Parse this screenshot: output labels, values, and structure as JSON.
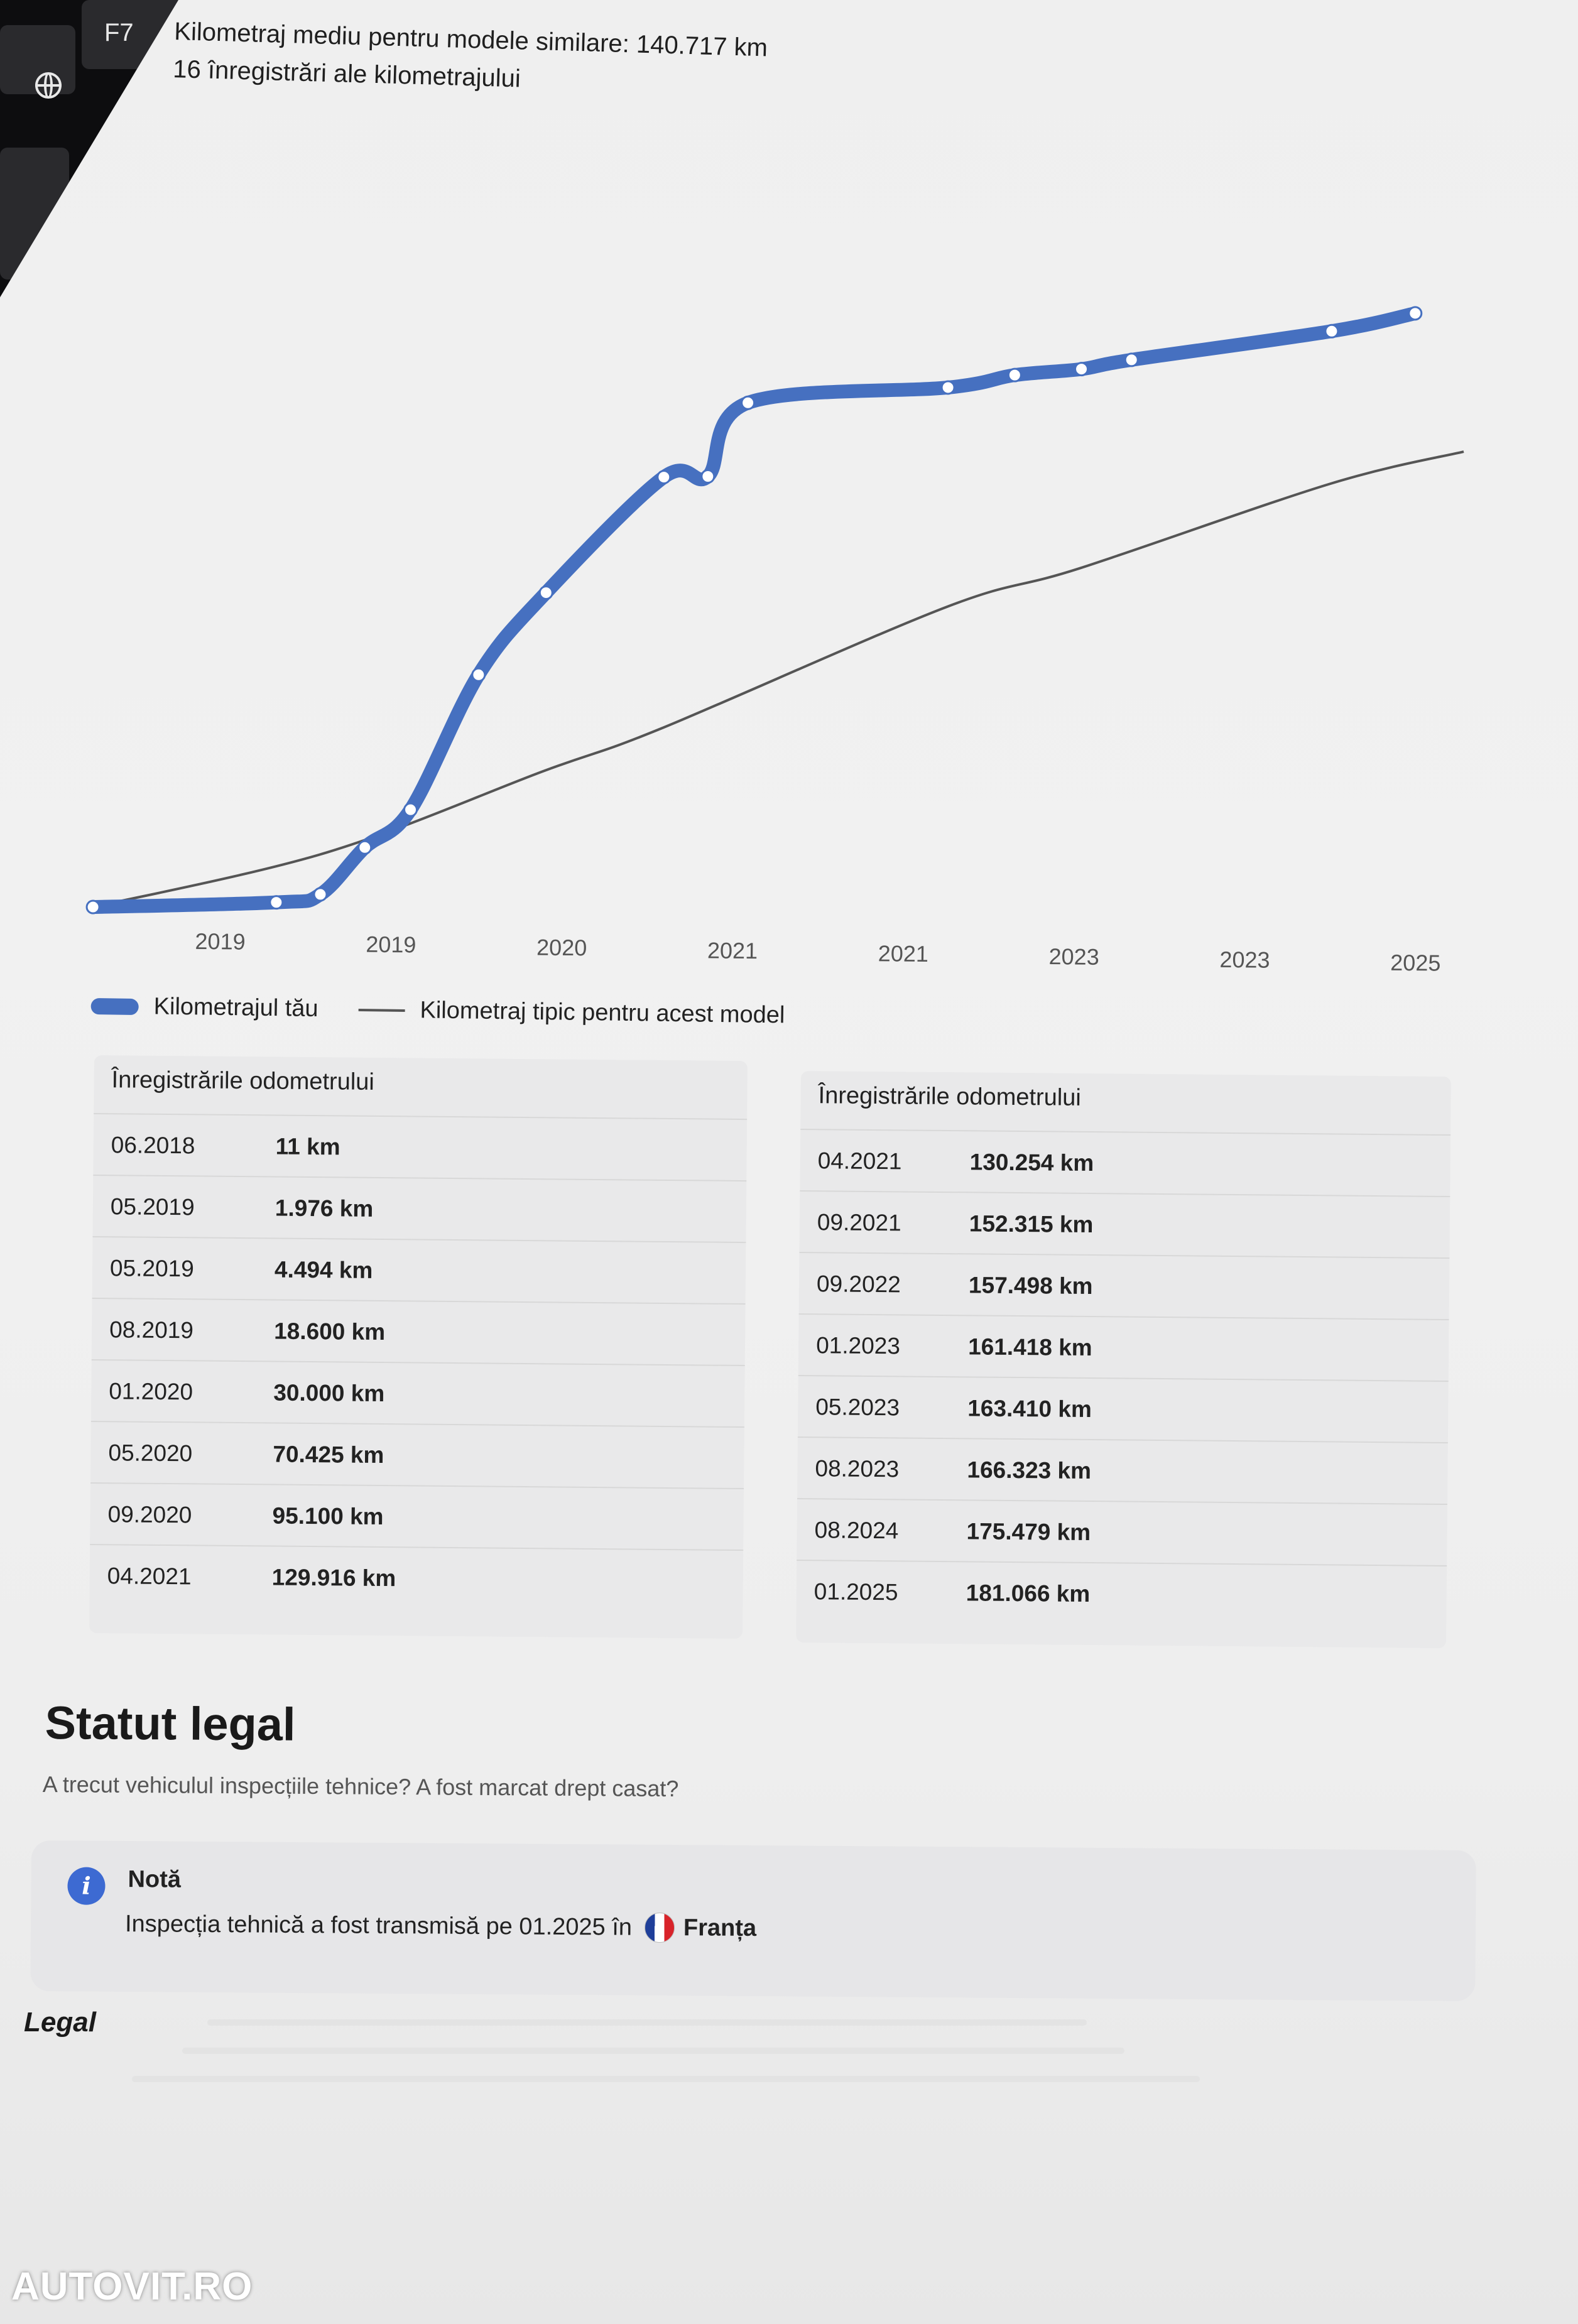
{
  "keyboard": {
    "key_f7": "F7"
  },
  "header": {
    "average_mileage": "Kilometraj mediu pentru modele similare: 140.717 km",
    "records_count": "16 înregistrări ale kilometrajului"
  },
  "chart_data": {
    "type": "line",
    "x_tick_labels": [
      "2019",
      "2019",
      "2020",
      "2021",
      "2021",
      "2023",
      "2023",
      "2025"
    ],
    "series": [
      {
        "name": "Kilometrajul tău",
        "color": "#4670c0",
        "points": [
          {
            "date": "06.2018",
            "km": 11
          },
          {
            "date": "05.2019",
            "km": 1976
          },
          {
            "date": "05.2019",
            "km": 4494
          },
          {
            "date": "08.2019",
            "km": 18600
          },
          {
            "date": "01.2020",
            "km": 30000
          },
          {
            "date": "05.2020",
            "km": 70425
          },
          {
            "date": "09.2020",
            "km": 95100
          },
          {
            "date": "04.2021",
            "km": 129916
          },
          {
            "date": "04.2021",
            "km": 130254
          },
          {
            "date": "09.2021",
            "km": 152315
          },
          {
            "date": "09.2022",
            "km": 157498
          },
          {
            "date": "01.2023",
            "km": 161418
          },
          {
            "date": "05.2023",
            "km": 163410
          },
          {
            "date": "08.2023",
            "km": 166323
          },
          {
            "date": "08.2024",
            "km": 175479
          },
          {
            "date": "01.2025",
            "km": 181066
          }
        ]
      },
      {
        "name": "Kilometraj tipic pentru acest model",
        "color": "#555555",
        "points": [
          {
            "date": "06.2018",
            "km": 0
          },
          {
            "date": "08.2019",
            "km": 17000
          },
          {
            "date": "09.2020",
            "km": 42000
          },
          {
            "date": "04.2021",
            "km": 55000
          },
          {
            "date": "09.2022",
            "km": 92000
          },
          {
            "date": "05.2023",
            "km": 104000
          },
          {
            "date": "08.2024",
            "km": 130000
          },
          {
            "date": "04.2025",
            "km": 140000
          }
        ]
      }
    ],
    "grid": false,
    "legend_position": "bottom-left"
  },
  "legend": {
    "mine": "Kilometrajul tău",
    "typical": "Kilometraj tipic pentru acest model"
  },
  "odometer_left": {
    "heading": "Înregistrările odometrului",
    "rows": [
      {
        "date": "06.2018",
        "km": "11 km"
      },
      {
        "date": "05.2019",
        "km": "1.976 km"
      },
      {
        "date": "05.2019",
        "km": "4.494 km"
      },
      {
        "date": "08.2019",
        "km": "18.600 km"
      },
      {
        "date": "01.2020",
        "km": "30.000 km"
      },
      {
        "date": "05.2020",
        "km": "70.425 km"
      },
      {
        "date": "09.2020",
        "km": "95.100 km"
      },
      {
        "date": "04.2021",
        "km": "129.916 km"
      }
    ]
  },
  "odometer_right": {
    "heading": "Înregistrările odometrului",
    "rows": [
      {
        "date": "04.2021",
        "km": "130.254 km"
      },
      {
        "date": "09.2021",
        "km": "152.315 km"
      },
      {
        "date": "09.2022",
        "km": "157.498 km"
      },
      {
        "date": "01.2023",
        "km": "161.418 km"
      },
      {
        "date": "05.2023",
        "km": "163.410 km"
      },
      {
        "date": "08.2023",
        "km": "166.323 km"
      },
      {
        "date": "08.2024",
        "km": "175.479 km"
      },
      {
        "date": "01.2025",
        "km": "181.066 km"
      }
    ]
  },
  "legal_status": {
    "title": "Statut legal",
    "subtitle": "A trecut vehiculul inspecțiile tehnice? A fost marcat drept casat?",
    "note_title": "Notă",
    "note_text": "Inspecția tehnică a fost transmisă pe 01.2025 în",
    "country": "Franța"
  },
  "legal_heading": "Legal",
  "watermark": "AUTOVIT.RO"
}
